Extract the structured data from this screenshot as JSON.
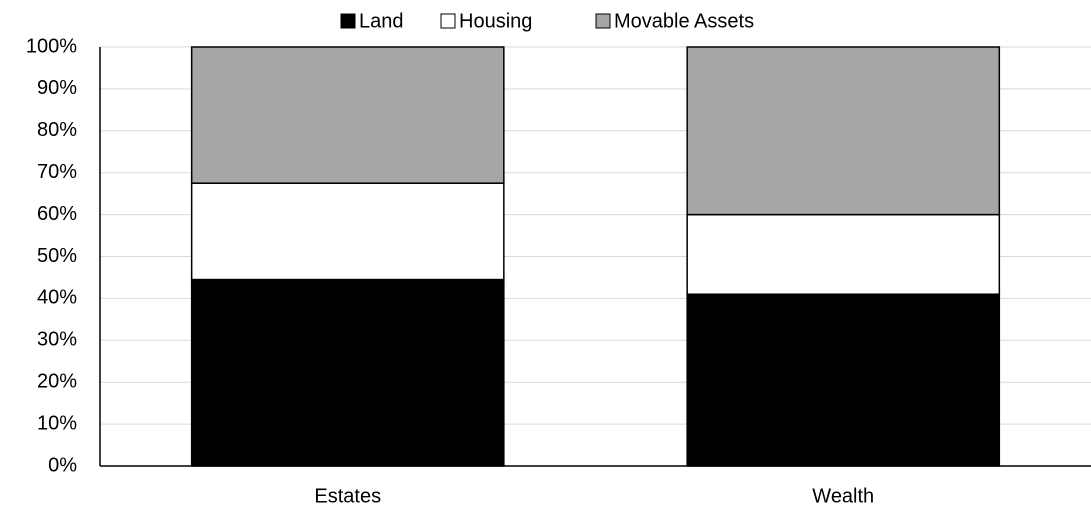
{
  "chart_data": {
    "type": "stacked_bar",
    "categories": [
      "Estates",
      "Wealth"
    ],
    "series": [
      {
        "name": "Land",
        "color": "#000000",
        "values": [
          44.5,
          41
        ]
      },
      {
        "name": "Housing",
        "color": "#ffffff",
        "values": [
          23,
          19
        ]
      },
      {
        "name": "Movable Assets",
        "color": "#a6a6a6",
        "values": [
          32.5,
          40
        ]
      }
    ],
    "ylim": [
      0,
      100
    ],
    "yticks": [
      {
        "value": 0,
        "label": "0%"
      },
      {
        "value": 10,
        "label": "10%"
      },
      {
        "value": 20,
        "label": "20%"
      },
      {
        "value": 30,
        "label": "30%"
      },
      {
        "value": 40,
        "label": "40%"
      },
      {
        "value": 50,
        "label": "50%"
      },
      {
        "value": 60,
        "label": "60%"
      },
      {
        "value": 70,
        "label": "70%"
      },
      {
        "value": 80,
        "label": "80%"
      },
      {
        "value": 90,
        "label": "90%"
      },
      {
        "value": 100,
        "label": "100%"
      }
    ],
    "grid": true,
    "legend": "top"
  }
}
